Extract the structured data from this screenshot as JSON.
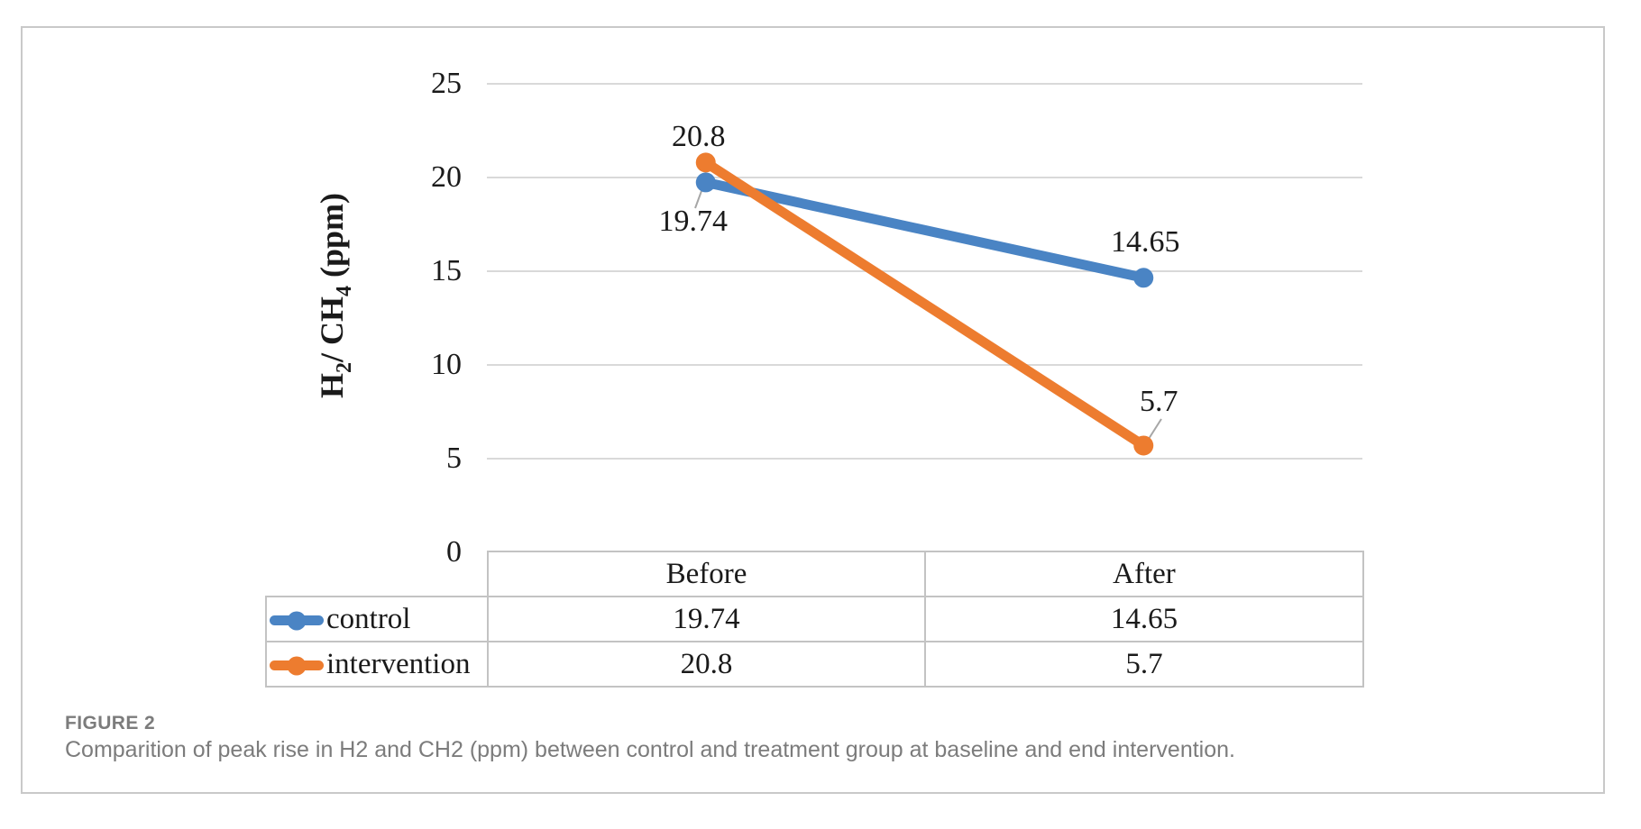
{
  "figure": {
    "label": "FIGURE 2",
    "caption": "Comparition of peak rise in H2 and CH2 (ppm) between control and treatment group at baseline and end intervention."
  },
  "chart_data": {
    "type": "line",
    "title": "",
    "categories": [
      "Before",
      "After"
    ],
    "series": [
      {
        "name": "control",
        "color": "#4A84C4",
        "values": [
          19.74,
          14.65
        ]
      },
      {
        "name": "intervention",
        "color": "#ED7C2F",
        "values": [
          20.8,
          5.7
        ]
      }
    ],
    "xlabel": "",
    "ylabel": "H2/ CH4 (ppm)",
    "ylabel_segments": [
      {
        "text": "H"
      },
      {
        "text": "2",
        "sub": true
      },
      {
        "text": "/ CH"
      },
      {
        "text": "4",
        "sub": true
      },
      {
        "text": " (ppm)"
      }
    ],
    "y_ticks": [
      25,
      20,
      15,
      10,
      5,
      0
    ],
    "ylim": [
      0,
      25
    ],
    "grid": "horizontal",
    "show_data_labels": true,
    "data_labels": [
      "19.74",
      "14.65",
      "20.8",
      "5.7"
    ],
    "legend_position": "data-table-left"
  },
  "colors": {
    "gridline": "#D9D9D9",
    "table_border": "#C3C3C3",
    "figure_border": "#C9C9C9",
    "caption_text": "#7C7C7C",
    "leader_line": "#A6A6A6",
    "text": "#1A1A1A",
    "background": "#FFFFFF"
  }
}
